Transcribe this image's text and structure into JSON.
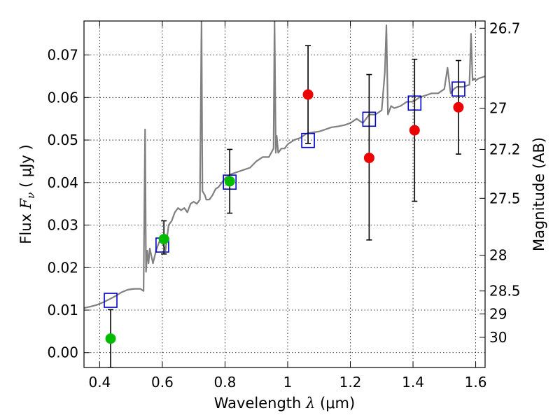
{
  "chart_data": {
    "type": "scatter",
    "xlabel": "Wavelength  λ (μm)",
    "xlabel_parts": {
      "text": "Wavelength  ",
      "symbol": "λ",
      "unit": " (μm)"
    },
    "ylabel": "Flux  Fν  ( μJy )",
    "ylabel_parts": {
      "text": "Flux  ",
      "symbol": "F",
      "subscript": "ν",
      "unit": "  ( μJy )"
    },
    "y2label": "Magnitude (AB)",
    "xlim": [
      0.35,
      1.63
    ],
    "ylim": [
      -0.0035,
      0.078
    ],
    "x_ticks": [
      {
        "value": 0.4,
        "label": "0.4"
      },
      {
        "value": 0.6,
        "label": "0.6"
      },
      {
        "value": 0.8,
        "label": "0.8"
      },
      {
        "value": 1.0,
        "label": "1"
      },
      {
        "value": 1.2,
        "label": "1.2"
      },
      {
        "value": 1.4,
        "label": "1.4"
      },
      {
        "value": 1.6,
        "label": "1.6"
      }
    ],
    "y_ticks": [
      {
        "value": 0.0,
        "label": "0.00"
      },
      {
        "value": 0.01,
        "label": "0.01"
      },
      {
        "value": 0.02,
        "label": "0.02"
      },
      {
        "value": 0.03,
        "label": "0.03"
      },
      {
        "value": 0.04,
        "label": "0.04"
      },
      {
        "value": 0.05,
        "label": "0.05"
      },
      {
        "value": 0.06,
        "label": "0.06"
      },
      {
        "value": 0.07,
        "label": "0.07"
      }
    ],
    "mag_ticks": [
      {
        "flux": 0.0763,
        "label": "26.7"
      },
      {
        "flux": 0.0575,
        "label": "27"
      },
      {
        "flux": 0.0478,
        "label": "27.2"
      },
      {
        "flux": 0.0363,
        "label": "27.5"
      },
      {
        "flux": 0.0229,
        "label": "28"
      },
      {
        "flux": 0.0145,
        "label": "28.5"
      },
      {
        "flux": 0.0091,
        "label": "29"
      },
      {
        "flux": 0.0036,
        "label": "30"
      }
    ],
    "grid": true,
    "series": [
      {
        "marker": "line",
        "color": "#808080",
        "x": [
          0.35,
          0.37,
          0.39,
          0.41,
          0.43,
          0.45,
          0.47,
          0.49,
          0.51,
          0.53,
          0.54,
          0.545,
          0.548,
          0.552,
          0.556,
          0.56,
          0.57,
          0.58,
          0.59,
          0.6,
          0.61,
          0.62,
          0.63,
          0.64,
          0.65,
          0.66,
          0.67,
          0.68,
          0.69,
          0.7,
          0.71,
          0.72,
          0.725,
          0.728,
          0.732,
          0.736,
          0.74,
          0.75,
          0.76,
          0.77,
          0.78,
          0.79,
          0.8,
          0.82,
          0.84,
          0.86,
          0.88,
          0.9,
          0.92,
          0.94,
          0.955,
          0.958,
          0.962,
          0.965,
          0.97,
          0.98,
          0.99,
          1.0,
          1.02,
          1.04,
          1.06,
          1.08,
          1.1,
          1.12,
          1.14,
          1.16,
          1.18,
          1.2,
          1.22,
          1.24,
          1.26,
          1.28,
          1.3,
          1.31,
          1.315,
          1.32,
          1.325,
          1.33,
          1.34,
          1.36,
          1.38,
          1.4,
          1.42,
          1.44,
          1.46,
          1.48,
          1.5,
          1.51,
          1.52,
          1.53,
          1.54,
          1.56,
          1.58,
          1.585,
          1.59,
          1.595,
          1.6,
          1.61,
          1.63
        ],
        "y": [
          0.0105,
          0.0108,
          0.0112,
          0.0118,
          0.0125,
          0.0133,
          0.0142,
          0.0148,
          0.015,
          0.015,
          0.0145,
          0.0525,
          0.019,
          0.024,
          0.021,
          0.0245,
          0.021,
          0.024,
          0.026,
          0.026,
          0.024,
          0.03,
          0.031,
          0.033,
          0.034,
          0.0335,
          0.034,
          0.033,
          0.035,
          0.0355,
          0.035,
          0.036,
          0.078,
          0.038,
          0.0375,
          0.037,
          0.036,
          0.036,
          0.037,
          0.0385,
          0.039,
          0.04,
          0.041,
          0.042,
          0.0425,
          0.043,
          0.0435,
          0.045,
          0.046,
          0.046,
          0.048,
          0.078,
          0.047,
          0.051,
          0.047,
          0.048,
          0.048,
          0.049,
          0.05,
          0.0505,
          0.0515,
          0.0518,
          0.052,
          0.0525,
          0.053,
          0.0532,
          0.0535,
          0.054,
          0.055,
          0.054,
          0.056,
          0.056,
          0.057,
          0.066,
          0.077,
          0.056,
          0.057,
          0.058,
          0.0575,
          0.058,
          0.059,
          0.059,
          0.06,
          0.0605,
          0.061,
          0.061,
          0.062,
          0.067,
          0.061,
          0.062,
          0.0625,
          0.0625,
          0.063,
          0.075,
          0.064,
          0.0645,
          0.064,
          0.0645,
          0.065
        ]
      },
      {
        "marker": "open-square",
        "color": "#0000cc",
        "x": [
          0.435,
          0.6,
          0.815,
          1.065,
          1.26,
          1.405,
          1.545
        ],
        "y": [
          0.0123,
          0.0253,
          0.0401,
          0.0499,
          0.0549,
          0.0587,
          0.062
        ]
      },
      {
        "marker": "filled-circle",
        "color": "#00bb00",
        "x": [
          0.435,
          0.605,
          0.815
        ],
        "y": [
          0.0033,
          0.0267,
          0.0403
        ],
        "err_low": [
          0.0068,
          0.0035,
          0.0075
        ],
        "err_high": [
          0.0068,
          0.0043,
          0.0075
        ]
      },
      {
        "marker": "filled-circle",
        "color": "#ee0000",
        "x": [
          1.065,
          1.26,
          1.405,
          1.545
        ],
        "y": [
          0.0607,
          0.0458,
          0.0523,
          0.0577
        ],
        "err_low": [
          0.0115,
          0.0193,
          0.0167,
          0.011
        ],
        "err_high": [
          0.0115,
          0.0196,
          0.0167,
          0.011
        ]
      }
    ]
  }
}
